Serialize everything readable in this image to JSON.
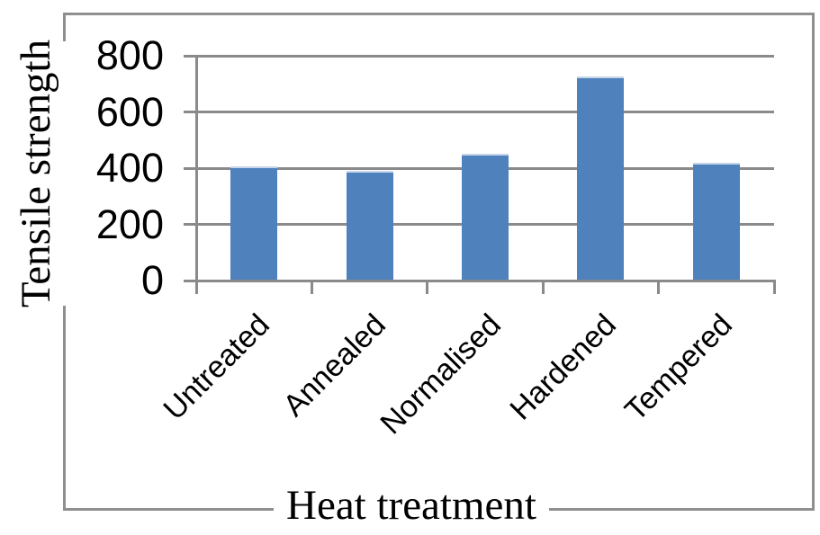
{
  "chart_data": {
    "type": "bar",
    "categories": [
      "Untreated",
      "Annealed",
      "Normalised",
      "Hardened",
      "Tempered"
    ],
    "values": [
      405,
      390,
      450,
      725,
      420
    ],
    "title": "",
    "xlabel": "Heat treatment",
    "ylabel": "Tensile strength",
    "yticks": [
      0,
      200,
      400,
      600,
      800
    ],
    "ylim": [
      0,
      800
    ],
    "grid": true,
    "legend": false,
    "bar_color": "#4F81BD",
    "bar_top_highlight": "#c8d6ea",
    "line_color": "#8a8a8a",
    "text_color": "#000000"
  }
}
